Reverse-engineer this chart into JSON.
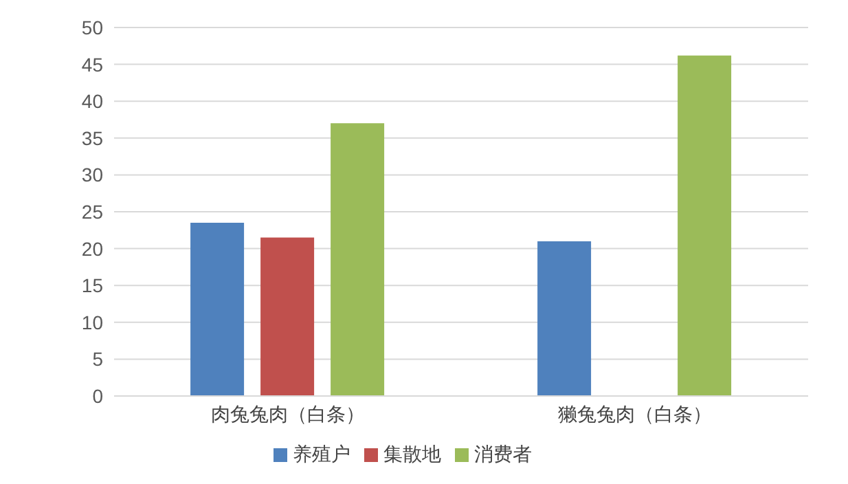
{
  "chart_data": {
    "type": "bar",
    "categories": [
      "肉兔兔肉（白条）",
      "獭兔兔肉（白条）"
    ],
    "series": [
      {
        "name": "养殖户",
        "color": "#4f81bd",
        "values": [
          23.5,
          21.0
        ]
      },
      {
        "name": "集散地",
        "color": "#c0504d",
        "values": [
          21.5,
          null
        ]
      },
      {
        "name": "消费者",
        "color": "#9bbb59",
        "values": [
          37.0,
          46.2
        ]
      }
    ],
    "ylim": [
      0,
      50
    ],
    "yticks": [
      0,
      5,
      10,
      15,
      20,
      25,
      30,
      35,
      40,
      45,
      50
    ],
    "grid": "y",
    "legend": "bottom"
  }
}
